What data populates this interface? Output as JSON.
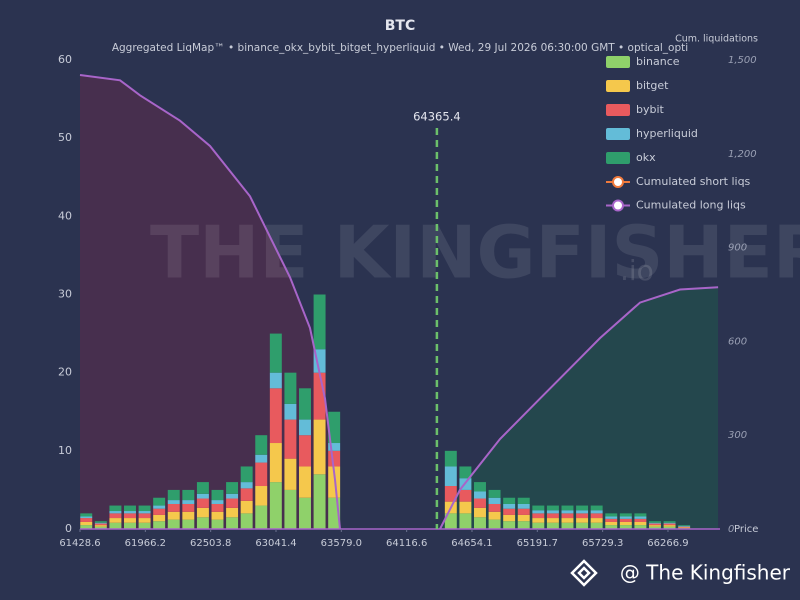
{
  "chart_data": {
    "type": "bar",
    "stacked": true,
    "title": "BTC",
    "subtitle": "Aggregated LiqMap™  •  binance_okx_bybit_bitget_hyperliquid  •  Wed, 29 Jul 2026 06:30:00 GMT  •  optical_opti",
    "xlabel": "Price",
    "y2label": "Cum. liquidations",
    "watermark": "THE KINGFISHER",
    "watermark_suffix": ".io",
    "footer": "@ The Kingfisher",
    "price_marker": 64365.4,
    "grid": false,
    "legend": "top-right",
    "xlim": [
      61428.6,
      66695
    ],
    "xticks": [
      61428.6,
      61966.2,
      62503.8,
      63041.4,
      {
        "value": 63579.0,
        "label": "63579.0"
      },
      64116.6,
      64654.1,
      65191.7,
      65729.3,
      66266.9
    ],
    "ylim": [
      0,
      60
    ],
    "yticks": [
      0,
      10,
      20,
      30,
      40,
      50,
      60
    ],
    "y2lim": [
      0,
      1500
    ],
    "y2ticks": [
      0,
      300,
      600,
      900,
      {
        "value": 1200,
        "label": "1,200"
      },
      {
        "value": 1500,
        "label": "1,500"
      }
    ],
    "bin_width": 120,
    "x": [
      61480,
      61600,
      61720,
      61840,
      61960,
      62080,
      62200,
      62320,
      62440,
      62560,
      62680,
      62800,
      62920,
      63040,
      63160,
      63280,
      63400,
      63520,
      64480,
      64600,
      64720,
      64840,
      64960,
      65080,
      65200,
      65320,
      65440,
      65560,
      65680,
      65800,
      65920,
      66040,
      66160,
      66280,
      66400,
      66520,
      66640
    ],
    "series": [
      {
        "name": "binance",
        "color": "#8fd16a",
        "values": [
          0.5,
          0.3,
          0.8,
          0.8,
          0.8,
          1,
          1.2,
          1.2,
          1.5,
          1.2,
          1.5,
          2,
          3,
          6,
          5,
          4,
          7,
          4,
          2,
          2,
          1.5,
          1.2,
          1,
          1,
          0.8,
          0.8,
          0.8,
          0.8,
          0.8,
          0.5,
          0.5,
          0.5,
          0.3,
          0.3,
          0.1,
          0,
          0
        ]
      },
      {
        "name": "bitget",
        "color": "#f5c84c",
        "values": [
          0.4,
          0.2,
          0.6,
          0.6,
          0.6,
          0.8,
          1,
          1,
          1.2,
          1,
          1.2,
          1.6,
          2.5,
          5,
          4,
          4,
          7,
          4,
          1.5,
          1.5,
          1.2,
          1,
          0.8,
          0.8,
          0.6,
          0.6,
          0.6,
          0.6,
          0.6,
          0.4,
          0.4,
          0.4,
          0.2,
          0.2,
          0.1,
          0,
          0
        ]
      },
      {
        "name": "bybit",
        "color": "#e85a5e",
        "values": [
          0.5,
          0.2,
          0.6,
          0.6,
          0.6,
          0.8,
          1,
          1,
          1.2,
          1,
          1.2,
          1.6,
          3,
          7,
          5,
          4,
          6,
          2,
          2,
          1.5,
          1.2,
          1,
          0.8,
          0.8,
          0.6,
          0.6,
          0.6,
          0.6,
          0.6,
          0.4,
          0.4,
          0.4,
          0.2,
          0.2,
          0.1,
          0,
          0
        ]
      },
      {
        "name": "hyperliquid",
        "color": "#63bcd8",
        "values": [
          0.2,
          0.1,
          0.3,
          0.3,
          0.3,
          0.4,
          0.5,
          0.5,
          0.6,
          0.5,
          0.6,
          0.8,
          1,
          2,
          2,
          2,
          3,
          1,
          2.5,
          1.5,
          0.9,
          0.8,
          0.6,
          0.6,
          0.4,
          0.4,
          0.4,
          0.4,
          0.4,
          0.3,
          0.3,
          0.3,
          0.1,
          0.1,
          0.1,
          0,
          0
        ]
      },
      {
        "name": "okx",
        "color": "#2f9e6c",
        "values": [
          0.4,
          0.2,
          0.7,
          0.7,
          0.7,
          1,
          1.3,
          1.3,
          1.5,
          1.3,
          1.5,
          2,
          2.5,
          5,
          4,
          4,
          7,
          4,
          2,
          1.5,
          1.2,
          1,
          0.8,
          0.8,
          0.6,
          0.6,
          0.6,
          0.6,
          0.6,
          0.4,
          0.4,
          0.4,
          0.2,
          0.2,
          0.1,
          0,
          0
        ]
      }
    ],
    "lines": [
      {
        "name": "Cumulated short liqs",
        "color": "#f07a3c",
        "line_color": "#a865c9",
        "fill": "#24494c",
        "axis": "y2",
        "x": [
          64391,
          64556,
          64885,
          65214,
          65543,
          65708,
          66037,
          66366,
          66679
        ],
        "values": [
          0,
          126,
          288,
          417,
          546,
          611,
          724,
          766,
          773
        ]
      },
      {
        "name": "Cumulated long liqs",
        "color": "#a865c9",
        "line_color": "#a865c9",
        "fill": "#4a2f4e",
        "axis": "y2",
        "x": [
          61428.6,
          61757.8,
          61922,
          62251.6,
          62498.6,
          62827.8,
          62951,
          63157,
          63321.6,
          63445,
          63527,
          63568
        ],
        "values": [
          1452,
          1435,
          1387,
          1306,
          1225,
          1064,
          967,
          805,
          643,
          417,
          158,
          0
        ]
      }
    ]
  }
}
